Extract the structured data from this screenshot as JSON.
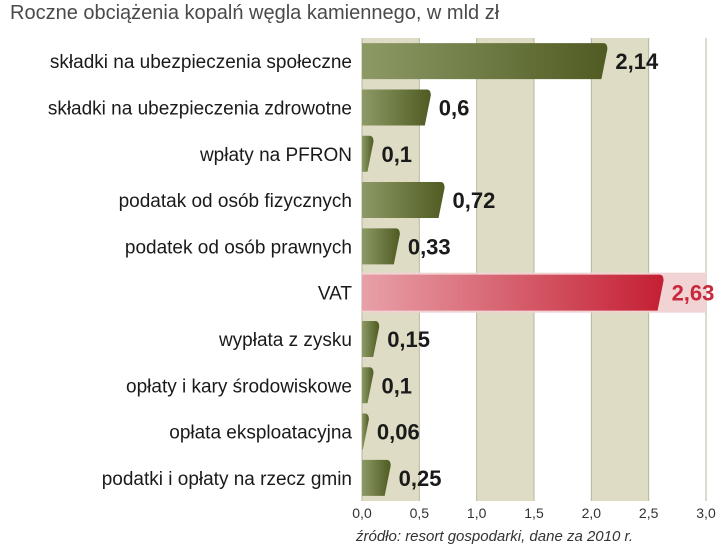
{
  "title": "Roczne obciążenia kopalń węgla kamiennego, w mld zł",
  "source": "źródło: resort gospodarki, dane za 2010 r.",
  "colors": {
    "bar_default": "#5e6b2f",
    "bar_highlight": "#c8283c",
    "value_default": "#1a1a1a",
    "value_highlight": "#c8283c",
    "band_default": "#dedcc4",
    "band_highlight": "#f2d3d3"
  },
  "chart_data": {
    "type": "bar",
    "orientation": "horizontal",
    "categories": [
      "składki na ubezpieczenia społeczne",
      "składki na ubezpieczenia zdrowotne",
      "wpłaty na PFRON",
      "podatak od osób fizycznych",
      "podatek od osób prawnych",
      "VAT",
      "wypłata z zysku",
      "opłaty i kary środowiskowe",
      "opłata eksploatacyjna",
      "podatki i opłaty na rzecz gmin"
    ],
    "values": [
      2.14,
      0.6,
      0.1,
      0.72,
      0.33,
      2.63,
      0.15,
      0.1,
      0.06,
      0.25
    ],
    "value_labels": [
      "2,14",
      "0,6",
      "0,1",
      "0,72",
      "0,33",
      "2,63",
      "0,15",
      "0,1",
      "0,06",
      "0,25"
    ],
    "highlight": "VAT",
    "xlim": [
      0,
      3.0
    ],
    "xticks": [
      "0,0",
      "0,5",
      "1,0",
      "1,5",
      "2,0",
      "2,5",
      "3,0"
    ],
    "grid": true
  }
}
